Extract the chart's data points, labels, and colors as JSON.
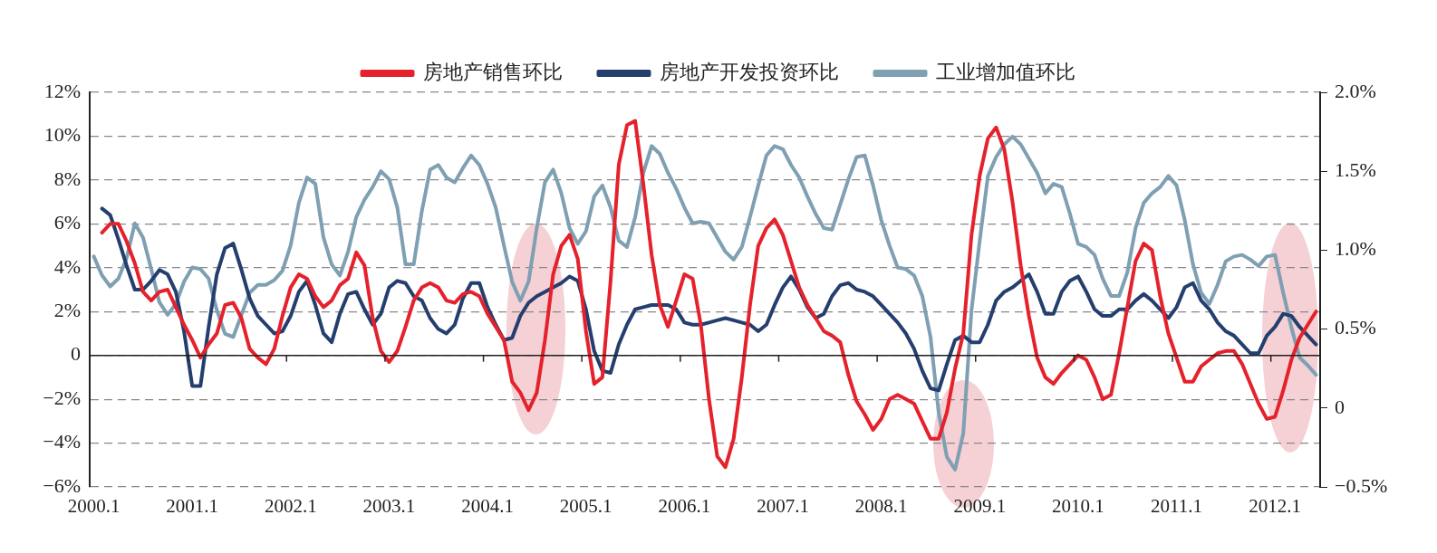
{
  "chart_data": {
    "type": "line",
    "categories": [
      "2000.1",
      null,
      null,
      null,
      null,
      null,
      null,
      null,
      null,
      null,
      null,
      null,
      "2001.1",
      null,
      null,
      null,
      null,
      null,
      null,
      null,
      null,
      null,
      null,
      null,
      "2002.1",
      null,
      null,
      null,
      null,
      null,
      null,
      null,
      null,
      null,
      null,
      null,
      "2003.1",
      null,
      null,
      null,
      null,
      null,
      null,
      null,
      null,
      null,
      null,
      null,
      "2004.1",
      null,
      null,
      null,
      null,
      null,
      null,
      null,
      null,
      null,
      null,
      null,
      "2005.1",
      null,
      null,
      null,
      null,
      null,
      null,
      null,
      null,
      null,
      null,
      null,
      "2006.1",
      null,
      null,
      null,
      null,
      null,
      null,
      null,
      null,
      null,
      null,
      null,
      "2007.1",
      null,
      null,
      null,
      null,
      null,
      null,
      null,
      null,
      null,
      null,
      null,
      "2008.1",
      null,
      null,
      null,
      null,
      null,
      null,
      null,
      null,
      null,
      null,
      null,
      "2009.1",
      null,
      null,
      null,
      null,
      null,
      null,
      null,
      null,
      null,
      null,
      null,
      "2010.1",
      null,
      null,
      null,
      null,
      null,
      null,
      null,
      null,
      null,
      null,
      null,
      "2011.1",
      null,
      null,
      null,
      null,
      null,
      null,
      null,
      null,
      null,
      null,
      null,
      "2012.1",
      null,
      null,
      null,
      null,
      null
    ],
    "series": [
      {
        "name": "房地产销售环比",
        "color": "#e5222c",
        "values": [
          null,
          5.6,
          6.0,
          6.0,
          5.2,
          4.2,
          2.9,
          2.5,
          2.9,
          3.0,
          2.2,
          1.4,
          0.7,
          -0.1,
          0.5,
          1.0,
          2.3,
          2.4,
          1.7,
          0.3,
          -0.1,
          -0.4,
          0.3,
          1.8,
          3.1,
          3.7,
          3.5,
          2.7,
          2.2,
          2.5,
          3.2,
          3.5,
          4.7,
          4.1,
          1.7,
          0.2,
          -0.3,
          0.2,
          1.3,
          2.5,
          3.1,
          3.3,
          3.1,
          2.5,
          2.4,
          2.8,
          2.9,
          2.7,
          1.9,
          1.3,
          0.7,
          -1.2,
          -1.7,
          -2.5,
          -1.7,
          0.7,
          3.7,
          5.0,
          5.5,
          4.4,
          1.1,
          -1.3,
          -1.0,
          3.4,
          8.7,
          10.5,
          10.7,
          7.8,
          4.6,
          2.3,
          1.3,
          2.5,
          3.7,
          3.5,
          1.4,
          -2.0,
          -4.6,
          -5.1,
          -3.8,
          -1.0,
          2.3,
          5.0,
          5.8,
          6.2,
          5.5,
          4.3,
          3.1,
          2.3,
          1.7,
          1.1,
          0.9,
          0.6,
          -0.9,
          -2.1,
          -2.7,
          -3.4,
          -2.9,
          -2.0,
          -1.8,
          -2.0,
          -2.2,
          -3.0,
          -3.8,
          -3.8,
          -2.6,
          -0.6,
          1.0,
          5.5,
          8.2,
          9.9,
          10.4,
          9.4,
          7.0,
          4.1,
          1.8,
          -0.1,
          -1.0,
          -1.3,
          -0.8,
          -0.4,
          0.0,
          -0.2,
          -1.0,
          -2.0,
          -1.8,
          0.1,
          2.2,
          4.3,
          5.1,
          4.8,
          2.7,
          1.0,
          -0.1,
          -1.2,
          -1.2,
          -0.5,
          -0.2,
          0.1,
          0.2,
          0.2,
          -0.4,
          -1.3,
          -2.2,
          -2.9,
          -2.8,
          -1.6,
          -0.2,
          0.8,
          1.4,
          2.0
        ]
      },
      {
        "name": "房地产开发投资环比",
        "color": "#243f6e",
        "values": [
          null,
          6.7,
          6.4,
          5.3,
          4.1,
          3.0,
          3.0,
          3.4,
          3.9,
          3.7,
          2.9,
          1.1,
          -1.4,
          -1.4,
          1.3,
          3.7,
          4.9,
          5.1,
          3.9,
          2.6,
          1.8,
          1.4,
          1.0,
          1.1,
          1.8,
          2.9,
          3.4,
          2.3,
          1.0,
          0.6,
          1.9,
          2.8,
          2.9,
          2.1,
          1.4,
          1.9,
          3.1,
          3.4,
          3.3,
          2.7,
          2.5,
          1.7,
          1.2,
          1.0,
          1.4,
          2.6,
          3.3,
          3.3,
          2.2,
          1.4,
          0.7,
          0.8,
          1.8,
          2.4,
          2.7,
          2.9,
          3.1,
          3.3,
          3.6,
          3.4,
          2.1,
          0.2,
          -0.7,
          -0.8,
          0.5,
          1.4,
          2.1,
          2.2,
          2.3,
          2.3,
          2.3,
          2.1,
          1.5,
          1.4,
          1.4,
          1.5,
          1.6,
          1.7,
          1.6,
          1.5,
          1.4,
          1.1,
          1.4,
          2.3,
          3.1,
          3.6,
          3.0,
          2.2,
          1.7,
          1.9,
          2.7,
          3.2,
          3.3,
          3.0,
          2.9,
          2.7,
          2.3,
          1.9,
          1.5,
          1.0,
          0.3,
          -0.7,
          -1.5,
          -1.6,
          -0.4,
          0.7,
          0.9,
          0.6,
          0.6,
          1.4,
          2.5,
          2.9,
          3.1,
          3.4,
          3.7,
          2.9,
          1.9,
          1.9,
          2.9,
          3.4,
          3.6,
          2.9,
          2.1,
          1.8,
          1.8,
          2.1,
          2.1,
          2.5,
          2.8,
          2.5,
          2.1,
          1.7,
          2.2,
          3.1,
          3.3,
          2.5,
          2.1,
          1.5,
          1.1,
          0.9,
          0.5,
          0.1,
          0.1,
          0.9,
          1.3,
          1.9,
          1.8,
          1.3,
          0.9,
          0.5
        ]
      },
      {
        "name": "工业增加值环比",
        "color": "#7f9fb3",
        "axis": "y2",
        "values": [
          0.96,
          0.84,
          0.77,
          0.82,
          0.95,
          1.17,
          1.08,
          0.88,
          0.67,
          0.59,
          0.66,
          0.8,
          0.89,
          0.88,
          0.82,
          0.62,
          0.47,
          0.45,
          0.59,
          0.73,
          0.78,
          0.78,
          0.81,
          0.87,
          1.03,
          1.3,
          1.46,
          1.42,
          1.08,
          0.91,
          0.84,
          0.99,
          1.21,
          1.32,
          1.4,
          1.5,
          1.45,
          1.27,
          0.91,
          0.91,
          1.25,
          1.51,
          1.54,
          1.46,
          1.43,
          1.52,
          1.6,
          1.54,
          1.42,
          1.27,
          1.03,
          0.8,
          0.68,
          0.8,
          1.14,
          1.43,
          1.51,
          1.36,
          1.14,
          1.04,
          1.12,
          1.34,
          1.41,
          1.27,
          1.06,
          1.02,
          1.21,
          1.49,
          1.66,
          1.61,
          1.49,
          1.39,
          1.27,
          1.17,
          1.18,
          1.17,
          1.08,
          0.99,
          0.94,
          1.02,
          1.21,
          1.41,
          1.6,
          1.66,
          1.64,
          1.54,
          1.46,
          1.34,
          1.23,
          1.14,
          1.13,
          1.29,
          1.45,
          1.59,
          1.6,
          1.41,
          1.19,
          1.03,
          0.89,
          0.88,
          0.84,
          0.71,
          0.45,
          -0.03,
          -0.31,
          -0.39,
          -0.16,
          0.62,
          1.06,
          1.47,
          1.59,
          1.67,
          1.72,
          1.67,
          1.58,
          1.49,
          1.36,
          1.42,
          1.4,
          1.23,
          1.04,
          1.02,
          0.97,
          0.82,
          0.71,
          0.71,
          0.86,
          1.14,
          1.3,
          1.36,
          1.4,
          1.47,
          1.41,
          1.19,
          0.91,
          0.73,
          0.66,
          0.78,
          0.93,
          0.96,
          0.97,
          0.94,
          0.9,
          0.96,
          0.97,
          0.73,
          0.51,
          0.32,
          0.27,
          0.21
        ]
      }
    ],
    "ylim": [
      -6,
      12
    ],
    "yticks": [
      {
        "value": -6,
        "label": "−6%"
      },
      {
        "value": -4,
        "label": "−4%"
      },
      {
        "value": -2,
        "label": "−2%"
      },
      {
        "value": 0,
        "label": "0"
      },
      {
        "value": 2,
        "label": "2%"
      },
      {
        "value": 4,
        "label": "4%"
      },
      {
        "value": 6,
        "label": "6%"
      },
      {
        "value": 8,
        "label": "8%"
      },
      {
        "value": 10,
        "label": "10%"
      },
      {
        "value": 12,
        "label": "12%"
      }
    ],
    "y2lim": [
      -0.5,
      2.0
    ],
    "y2ticks": [
      {
        "value": -0.5,
        "label": "−0.5%"
      },
      {
        "value": 0,
        "label": "0"
      },
      {
        "value": 0.5,
        "label": "0.5%"
      },
      {
        "value": 1.0,
        "label": "1.0%"
      },
      {
        "value": 1.5,
        "label": "1.5%"
      },
      {
        "value": 2.0,
        "label": "2.0%"
      }
    ],
    "grid": "y",
    "legend": "top",
    "marker": "none",
    "line_style": "solid"
  }
}
